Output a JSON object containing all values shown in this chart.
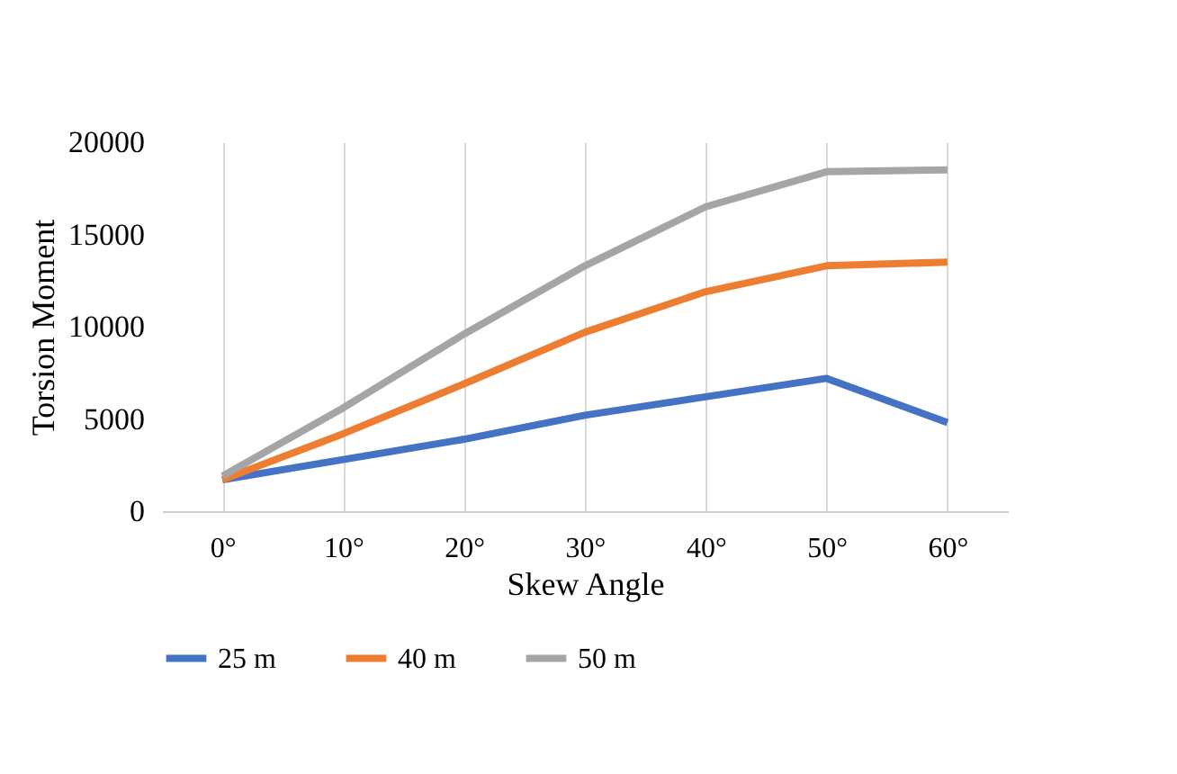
{
  "chart_data": {
    "type": "line",
    "xlabel": "Skew Angle",
    "ylabel": "Torsion Moment",
    "categories": [
      "0°",
      "10°",
      "20°",
      "30°",
      "40°",
      "50°",
      "60°"
    ],
    "series": [
      {
        "name": "25 m",
        "color": "#4472c4",
        "values": [
          1700,
          2800,
          3900,
          5200,
          6200,
          7200,
          4800
        ]
      },
      {
        "name": "40 m",
        "color": "#ed7d31",
        "values": [
          1700,
          4200,
          6900,
          9700,
          11900,
          13300,
          13500
        ]
      },
      {
        "name": "50 m",
        "color": "#a5a5a5",
        "values": [
          1900,
          5600,
          9600,
          13300,
          16500,
          18400,
          18500
        ]
      }
    ],
    "ylim": [
      0,
      20000
    ],
    "yticks": [
      0,
      5000,
      10000,
      15000,
      20000
    ],
    "grid": "x",
    "legend": "bottom",
    "marker": "none",
    "line_style": "solid"
  }
}
